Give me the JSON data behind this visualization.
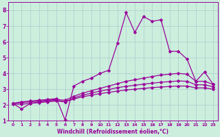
{
  "xlabel": "Windchill (Refroidissement éolien,°C)",
  "ylabel": "",
  "bg_color": "#cceedd",
  "line_color": "#990099",
  "grid_color": "#aacccc",
  "xlim": [
    -0.5,
    23.5
  ],
  "ylim": [
    1,
    8.5
  ],
  "xticks": [
    0,
    1,
    2,
    3,
    4,
    5,
    6,
    7,
    8,
    9,
    10,
    11,
    12,
    13,
    14,
    15,
    16,
    17,
    18,
    19,
    20,
    21,
    22,
    23
  ],
  "yticks": [
    1,
    2,
    3,
    4,
    5,
    6,
    7,
    8
  ],
  "line1_x": [
    0,
    1,
    2,
    3,
    4,
    5,
    6,
    7,
    8,
    9,
    10,
    11,
    12,
    13,
    14,
    15,
    16,
    17,
    18,
    19,
    20,
    21,
    22,
    23
  ],
  "line1_y": [
    2.1,
    2.2,
    2.25,
    2.3,
    2.35,
    2.4,
    1.05,
    3.2,
    3.5,
    3.7,
    4.0,
    4.2,
    5.9,
    7.85,
    6.6,
    7.6,
    7.3,
    7.4,
    5.4,
    5.4,
    4.9,
    3.5,
    4.1,
    3.3
  ],
  "line2_x": [
    0,
    1,
    2,
    3,
    4,
    5,
    6,
    7,
    8,
    9,
    10,
    11,
    12,
    13,
    14,
    15,
    16,
    17,
    18,
    19,
    20,
    21,
    22,
    23
  ],
  "line2_y": [
    2.1,
    2.15,
    2.2,
    2.25,
    2.3,
    2.35,
    2.3,
    2.55,
    2.75,
    2.9,
    3.05,
    3.2,
    3.35,
    3.5,
    3.6,
    3.7,
    3.8,
    3.9,
    3.95,
    4.0,
    3.95,
    3.5,
    3.5,
    3.3
  ],
  "line3_x": [
    0,
    1,
    2,
    3,
    4,
    5,
    6,
    7,
    8,
    9,
    10,
    11,
    12,
    13,
    14,
    15,
    16,
    17,
    18,
    19,
    20,
    21,
    22,
    23
  ],
  "line3_y": [
    2.1,
    1.75,
    2.1,
    2.2,
    2.25,
    2.3,
    2.2,
    2.45,
    2.62,
    2.75,
    2.88,
    2.98,
    3.1,
    3.18,
    3.25,
    3.32,
    3.38,
    3.44,
    3.48,
    3.52,
    3.5,
    3.28,
    3.28,
    3.15
  ],
  "line4_x": [
    0,
    1,
    2,
    3,
    4,
    5,
    6,
    7,
    8,
    9,
    10,
    11,
    12,
    13,
    14,
    15,
    16,
    17,
    18,
    19,
    20,
    21,
    22,
    23
  ],
  "line4_y": [
    2.05,
    2.05,
    2.1,
    2.15,
    2.2,
    2.25,
    2.2,
    2.38,
    2.52,
    2.62,
    2.72,
    2.8,
    2.88,
    2.95,
    3.0,
    3.05,
    3.1,
    3.14,
    3.17,
    3.2,
    3.2,
    3.08,
    3.08,
    3.0
  ],
  "marker": "D",
  "markersize": 2.5,
  "linewidth": 0.9
}
